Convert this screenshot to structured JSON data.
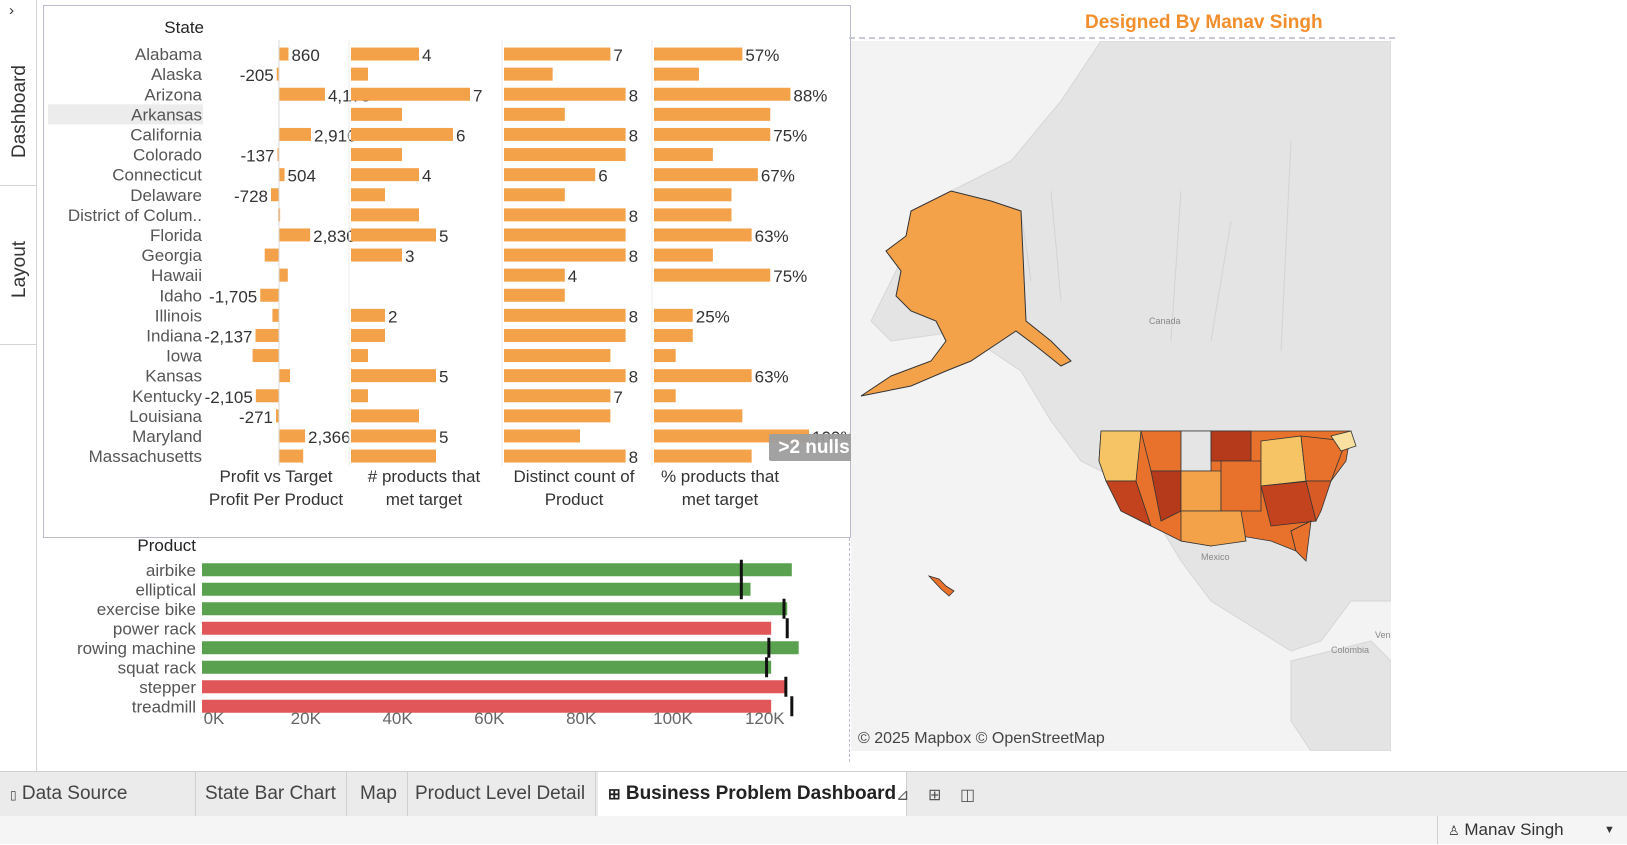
{
  "sidebar": {
    "chevron": "›",
    "tabs": [
      "Dashboard",
      "Layout"
    ]
  },
  "state_panel": {
    "state_header": "State",
    "column_headers": [
      "Profit vs Target\nProfit Per Product",
      "# products that\nmet target",
      "Distinct count of\nProduct",
      "% products that\nmet target"
    ],
    "nulls_indicator": ">2 nulls",
    "selected_row": "Arkansas"
  },
  "chart_data": [
    {
      "type": "bar",
      "title": "",
      "categories": [
        "Alabama",
        "Alaska",
        "Arizona",
        "Arkansas",
        "California",
        "Colorado",
        "Connecticut",
        "Delaware",
        "District of Colum..",
        "Florida",
        "Georgia",
        "Hawaii",
        "Idaho",
        "Illinois",
        "Indiana",
        "Iowa",
        "Kansas",
        "Kentucky",
        "Louisiana",
        "Maryland",
        "Massachusetts"
      ],
      "series": [
        {
          "name": "Profit vs Target Profit Per Product",
          "values": [
            860,
            -205,
            4178,
            0,
            2910,
            -137,
            504,
            -728,
            -80,
            2830,
            -1300,
            800,
            -1705,
            -600,
            -2137,
            -2400,
            1000,
            -2105,
            -271,
            2366,
            2200
          ],
          "labels": [
            "860",
            "-205",
            "4,178",
            "",
            "2,910",
            "-137",
            "504",
            "-728",
            "",
            "2,830",
            "",
            "",
            "-1,705",
            "",
            "-2,137",
            "",
            "",
            "-2,105",
            "-271",
            "2,366",
            ""
          ]
        },
        {
          "name": "# products that met target",
          "values": [
            4,
            1,
            7,
            3,
            6,
            3,
            4,
            2,
            4,
            5,
            3,
            null,
            null,
            2,
            2,
            1,
            5,
            1,
            4,
            5,
            5
          ],
          "labels": [
            "4",
            "",
            "7",
            "",
            "6",
            "",
            "4",
            "",
            "",
            "5",
            "3",
            "",
            "",
            "2",
            "",
            "",
            "5",
            "",
            "",
            "5",
            ""
          ]
        },
        {
          "name": "Distinct count of Product",
          "values": [
            7,
            3.2,
            8,
            4,
            8,
            8,
            6,
            4,
            8,
            8,
            8,
            4,
            4,
            8,
            8,
            7,
            8,
            7,
            7,
            5,
            8
          ],
          "labels": [
            "7",
            "",
            "8",
            "",
            "8",
            "",
            "6",
            "",
            "8",
            "",
            "8",
            "4",
            "",
            "8",
            "",
            "",
            "8",
            "7",
            "",
            "",
            "8"
          ]
        },
        {
          "name": "% products that met target",
          "values": [
            57,
            29,
            88,
            75,
            75,
            38,
            67,
            50,
            50,
            63,
            38,
            75,
            null,
            25,
            25,
            14,
            63,
            14,
            57,
            100,
            63
          ],
          "labels": [
            "57%",
            "",
            "88%",
            "",
            "75%",
            "",
            "67%",
            "",
            "",
            "63%",
            "",
            "75%",
            "",
            "25%",
            "",
            "",
            "63%",
            "",
            "",
            "100%",
            ""
          ]
        }
      ]
    },
    {
      "type": "bar",
      "title": "",
      "ylabel": "Product",
      "categories": [
        "airbike",
        "elliptical",
        "exercise bike",
        "power rack",
        "rowing machine",
        "squat rack",
        "stepper",
        "treadmill"
      ],
      "series": [
        {
          "name": "Value",
          "values": [
            128500,
            119500,
            127500,
            124000,
            130000,
            124000,
            127200,
            124000
          ]
        },
        {
          "name": "Target",
          "values": [
            117500,
            117500,
            126800,
            127500,
            123500,
            123000,
            127200,
            128500
          ]
        }
      ],
      "status": [
        "met",
        "met",
        "met",
        "missed",
        "met",
        "met",
        "missed",
        "missed"
      ],
      "xticks": [
        "0K",
        "20K",
        "40K",
        "60K",
        "80K",
        "100K",
        "120K"
      ],
      "xlim": [
        0,
        140000
      ],
      "header": "Product"
    }
  ],
  "colors": {
    "orange_bar": "#f4a24a",
    "met": "#59a14f",
    "missed": "#e15759",
    "brand": "#f28e2b"
  },
  "map": {
    "credit": "Designed By Manav Singh",
    "attribution": "© 2025 Mapbox © OpenStreetMap",
    "labels": [
      "Canada",
      "Mexico",
      "Colombia",
      "Ven"
    ]
  },
  "tabs": {
    "items": [
      "Data Source",
      "State Bar Chart",
      "Map",
      "Product Level Detail",
      "Business Problem Dashboard"
    ],
    "active": "Business Problem Dashboard"
  },
  "status_bar": {
    "user": "Manav Singh"
  }
}
